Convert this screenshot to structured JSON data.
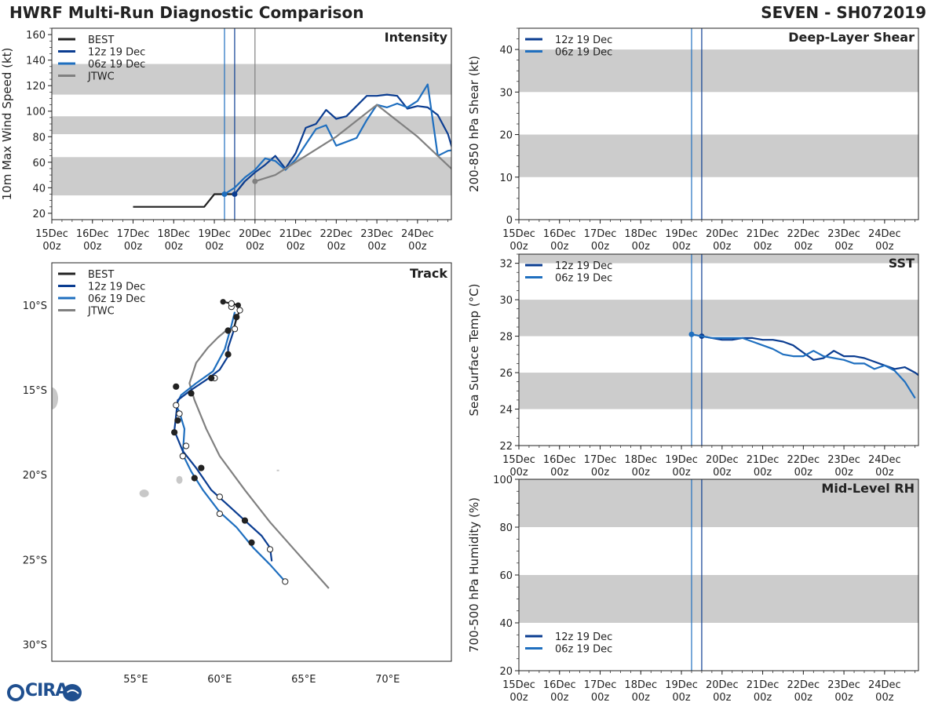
{
  "header": {
    "title": "HWRF Multi-Run Diagnostic Comparison",
    "storm": "SEVEN - SH072019"
  },
  "colors": {
    "best": "#222222",
    "run12": "#0b3d91",
    "run06": "#1f6fbf",
    "jtwc": "#808080",
    "band": "#cccccc",
    "land": "#c8c8c8"
  },
  "logo": {
    "text": "CIRA"
  },
  "chart_data": [
    {
      "id": "intensity",
      "type": "line",
      "title": "Intensity",
      "ylabel": "10m Max Wind Speed (kt)",
      "ylim": [
        15,
        165
      ],
      "yticks": [
        20,
        40,
        60,
        80,
        100,
        120,
        140,
        160
      ],
      "xlim": [
        0,
        236
      ],
      "xticks": [
        0,
        24,
        48,
        72,
        96,
        120,
        144,
        168,
        192,
        216
      ],
      "xticklabels": [
        "15Dec\n00z",
        "16Dec\n00z",
        "17Dec\n00z",
        "18Dec\n00z",
        "19Dec\n00z",
        "20Dec\n00z",
        "21Dec\n00z",
        "22Dec\n00z",
        "23Dec\n00z",
        "24Dec\n00z"
      ],
      "bands": [
        [
          34,
          64
        ],
        [
          82,
          96
        ],
        [
          113,
          137
        ]
      ],
      "vlines": [
        {
          "x": 108,
          "series": "run12"
        },
        {
          "x": 102,
          "series": "run06"
        },
        {
          "x": 120,
          "series": "jtwc"
        }
      ],
      "legend": [
        "BEST",
        "12z 19 Dec",
        "06z 19 Dec",
        "JTWC"
      ],
      "series": [
        {
          "name": "BEST",
          "key": "best",
          "x": [
            48,
            54,
            60,
            66,
            72,
            78,
            84,
            90,
            96,
            102,
            108,
            114
          ],
          "y": [
            25,
            25,
            25,
            25,
            25,
            25,
            25,
            25,
            35,
            35,
            35,
            45
          ],
          "marker": "none"
        },
        {
          "name": "12z 19 Dec",
          "key": "run12",
          "x": [
            108,
            114,
            120,
            126,
            132,
            138,
            144,
            150,
            156,
            162,
            168,
            174,
            180,
            186,
            192,
            198,
            204,
            210,
            216,
            222,
            228,
            234,
            240
          ],
          "y": [
            35,
            45,
            52,
            58,
            65,
            55,
            67,
            87,
            90,
            101,
            94,
            96,
            104,
            112,
            112,
            113,
            112,
            102,
            104,
            103,
            97,
            82,
            55
          ],
          "marker": "start"
        },
        {
          "name": "06z 19 Dec",
          "key": "run06",
          "x": [
            102,
            108,
            114,
            120,
            126,
            132,
            138,
            144,
            150,
            156,
            162,
            168,
            174,
            180,
            186,
            192,
            198,
            204,
            210,
            216,
            222,
            228,
            234,
            240
          ],
          "y": [
            35,
            40,
            48,
            54,
            63,
            61,
            54,
            62,
            74,
            86,
            89,
            73,
            76,
            79,
            93,
            105,
            103,
            106,
            103,
            108,
            121,
            65,
            69,
            70
          ],
          "marker": "start"
        },
        {
          "name": "JTWC",
          "key": "jtwc",
          "x": [
            120,
            132,
            144,
            168,
            192,
            216,
            240
          ],
          "y": [
            45,
            50,
            60,
            80,
            105,
            80,
            50
          ],
          "marker": "start"
        }
      ]
    },
    {
      "id": "shear",
      "type": "line",
      "title": "Deep-Layer Shear",
      "ylabel": "200-850 hPa Shear (kt)",
      "ylim": [
        0,
        45
      ],
      "yticks": [
        0,
        10,
        20,
        30,
        40
      ],
      "xlim": [
        0,
        236
      ],
      "xticks": [
        0,
        24,
        48,
        72,
        96,
        120,
        144,
        168,
        192,
        216
      ],
      "xticklabels": [
        "15Dec\n00z",
        "16Dec\n00z",
        "17Dec\n00z",
        "18Dec\n00z",
        "19Dec\n00z",
        "20Dec\n00z",
        "21Dec\n00z",
        "22Dec\n00z",
        "23Dec\n00z",
        "24Dec\n00z"
      ],
      "bands": [
        [
          10,
          20
        ],
        [
          30,
          40
        ]
      ],
      "vlines": [
        {
          "x": 108,
          "series": "run12"
        },
        {
          "x": 102,
          "series": "run06"
        }
      ],
      "legend": [
        "12z 19 Dec",
        "06z 19 Dec"
      ],
      "series": []
    },
    {
      "id": "sst",
      "type": "line",
      "title": "SST",
      "ylabel": "Sea Surface Temp (°C)",
      "ylim": [
        22,
        32.5
      ],
      "yticks": [
        22,
        24,
        26,
        28,
        30,
        32
      ],
      "xlim": [
        0,
        236
      ],
      "xticks": [
        0,
        24,
        48,
        72,
        96,
        120,
        144,
        168,
        192,
        216
      ],
      "xticklabels": [
        "15Dec\n00z",
        "16Dec\n00z",
        "17Dec\n00z",
        "18Dec\n00z",
        "19Dec\n00z",
        "20Dec\n00z",
        "21Dec\n00z",
        "22Dec\n00z",
        "23Dec\n00z",
        "24Dec\n00z"
      ],
      "bands": [
        [
          24,
          26
        ],
        [
          28,
          30
        ],
        [
          32,
          34
        ]
      ],
      "vlines": [
        {
          "x": 108,
          "series": "run12"
        },
        {
          "x": 102,
          "series": "run06"
        }
      ],
      "legend": [
        "12z 19 Dec",
        "06z 19 Dec"
      ],
      "series": [
        {
          "name": "12z 19 Dec",
          "key": "run12",
          "x": [
            108,
            114,
            120,
            126,
            132,
            138,
            144,
            150,
            156,
            162,
            168,
            174,
            180,
            186,
            192,
            198,
            204,
            210,
            216,
            222,
            228,
            234,
            240
          ],
          "y": [
            28.0,
            27.9,
            27.8,
            27.8,
            27.9,
            27.9,
            27.8,
            27.8,
            27.7,
            27.5,
            27.1,
            26.7,
            26.8,
            27.2,
            26.9,
            26.9,
            26.8,
            26.6,
            26.4,
            26.2,
            26.3,
            26.0,
            25.6
          ],
          "marker": "start"
        },
        {
          "name": "06z 19 Dec",
          "key": "run06",
          "x": [
            102,
            108,
            114,
            120,
            126,
            132,
            138,
            144,
            150,
            156,
            162,
            168,
            174,
            180,
            186,
            192,
            198,
            204,
            210,
            216,
            222,
            228,
            234
          ],
          "y": [
            28.1,
            28.0,
            27.9,
            27.9,
            27.9,
            27.9,
            27.7,
            27.5,
            27.3,
            27.0,
            26.9,
            26.9,
            27.2,
            26.9,
            26.8,
            26.7,
            26.5,
            26.5,
            26.2,
            26.4,
            26.1,
            25.5,
            24.6
          ],
          "marker": "start"
        }
      ]
    },
    {
      "id": "rh",
      "type": "line",
      "title": "Mid-Level RH",
      "ylabel": "700-500 hPa Humidity (%)",
      "ylim": [
        20,
        100
      ],
      "yticks": [
        20,
        40,
        60,
        80,
        100
      ],
      "xlim": [
        0,
        236
      ],
      "xticks": [
        0,
        24,
        48,
        72,
        96,
        120,
        144,
        168,
        192,
        216
      ],
      "xticklabels": [
        "15Dec\n00z",
        "16Dec\n00z",
        "17Dec\n00z",
        "18Dec\n00z",
        "19Dec\n00z",
        "20Dec\n00z",
        "21Dec\n00z",
        "22Dec\n00z",
        "23Dec\n00z",
        "24Dec\n00z"
      ],
      "bands": [
        [
          40,
          60
        ],
        [
          80,
          100
        ]
      ],
      "vlines": [
        {
          "x": 108,
          "series": "run12"
        },
        {
          "x": 102,
          "series": "run06"
        }
      ],
      "legend": [
        "12z 19 Dec",
        "06z 19 Dec"
      ],
      "series": []
    },
    {
      "id": "track",
      "type": "line",
      "title": "Track",
      "xlim": [
        50.0,
        73.8
      ],
      "ylim": [
        -31.0,
        -7.5
      ],
      "xticks": [
        55,
        60,
        65,
        70
      ],
      "xticklabels": [
        "55°E",
        "60°E",
        "65°E",
        "70°E"
      ],
      "yticks": [
        -10,
        -15,
        -20,
        -25,
        -30
      ],
      "yticklabels": [
        "10°S",
        "15°S",
        "20°S",
        "25°S",
        "30°S"
      ],
      "legend": [
        "BEST",
        "12z 19 Dec",
        "06z 19 Dec",
        "JTWC"
      ],
      "series": [
        {
          "name": "BEST",
          "key": "best",
          "lon": [
            60.2,
            60.7,
            61.1,
            61.2,
            61.0,
            60.8
          ],
          "lat": [
            -9.8,
            -9.9,
            -10.0,
            -10.3,
            -10.8,
            -11.5
          ],
          "marker": "none"
        },
        {
          "name": "12z 19 Dec",
          "key": "run12",
          "lon": [
            61.0,
            60.8,
            60.5,
            60.5,
            60.0,
            59.2,
            58.3,
            57.5,
            57.4,
            57.3,
            57.8,
            58.6,
            59.5,
            60.5,
            61.5,
            62.5,
            63.0,
            63.1
          ],
          "lat": [
            -10.7,
            -11.6,
            -12.5,
            -13.0,
            -13.8,
            -14.4,
            -15.0,
            -15.6,
            -16.5,
            -17.4,
            -18.6,
            -19.6,
            -20.9,
            -21.8,
            -22.7,
            -23.6,
            -24.3,
            -25.1
          ],
          "dots": [
            [
              61.0,
              -10.7,
              "f"
            ],
            [
              60.5,
              -12.9,
              "f"
            ],
            [
              57.4,
              -14.8,
              "f"
            ],
            [
              58.3,
              -15.2,
              "f"
            ],
            [
              57.5,
              -16.8,
              "f"
            ],
            [
              57.3,
              -17.5,
              "f"
            ],
            [
              58.9,
              -19.6,
              "f"
            ],
            [
              58.5,
              -20.2,
              "f"
            ],
            [
              61.5,
              -22.7,
              "f"
            ],
            [
              61.9,
              -24.0,
              "f"
            ],
            [
              60.5,
              -11.5,
              "f"
            ],
            [
              59.5,
              -14.3,
              "f"
            ]
          ]
        },
        {
          "name": "06z 19 Dec",
          "key": "run06",
          "lon": [
            60.9,
            60.7,
            60.3,
            59.6,
            58.6,
            57.7,
            57.4,
            57.6,
            57.9,
            57.8,
            58.3,
            59.0,
            60.0,
            61.0,
            62.0,
            63.0,
            63.9
          ],
          "lat": [
            -10.4,
            -11.2,
            -12.6,
            -13.9,
            -14.6,
            -15.3,
            -15.9,
            -16.3,
            -17.3,
            -18.8,
            -19.8,
            -20.9,
            -22.2,
            -23.1,
            -24.3,
            -25.3,
            -26.3
          ],
          "dots": [
            [
              60.7,
              -10.1,
              "o"
            ],
            [
              60.9,
              -11.4,
              "o"
            ],
            [
              59.7,
              -14.3,
              "o"
            ],
            [
              57.4,
              -15.9,
              "o"
            ],
            [
              57.6,
              -16.4,
              "o"
            ],
            [
              58.0,
              -18.3,
              "o"
            ],
            [
              57.8,
              -18.9,
              "o"
            ],
            [
              60.0,
              -21.3,
              "o"
            ],
            [
              60.0,
              -22.3,
              "o"
            ],
            [
              63.0,
              -24.4,
              "o"
            ],
            [
              63.9,
              -26.3,
              "o"
            ]
          ]
        },
        {
          "name": "JTWC",
          "key": "jtwc",
          "lon": [
            60.5,
            59.9,
            59.3,
            58.6,
            58.2,
            58.5,
            59.2,
            60.0,
            61.5,
            63.0,
            64.7,
            66.5
          ],
          "lat": [
            -11.4,
            -11.9,
            -12.5,
            -13.4,
            -14.6,
            -15.6,
            -17.3,
            -18.9,
            -20.9,
            -22.8,
            -24.7,
            -26.7
          ],
          "dots": [
            [
              60.5,
              -11.5,
              "g"
            ]
          ]
        }
      ]
    }
  ]
}
